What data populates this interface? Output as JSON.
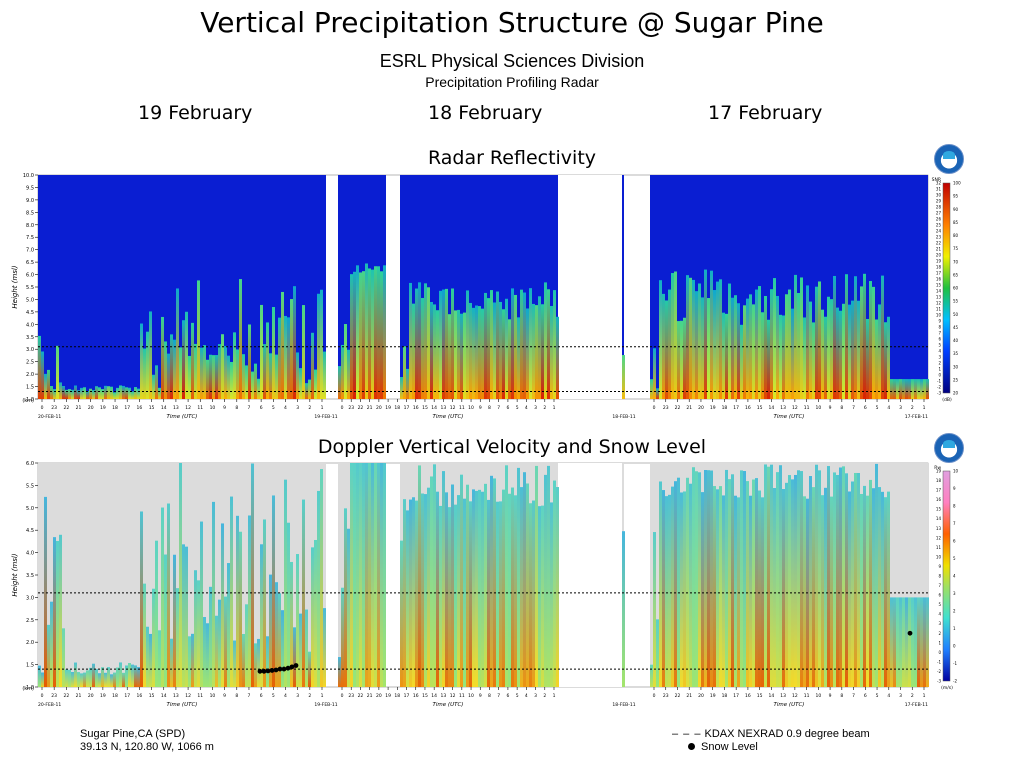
{
  "header": {
    "title": "Vertical Precipitation Structure @ Sugar Pine",
    "org": "ESRL Physical Sciences Division",
    "instrument": "Precipitation Profiling Radar"
  },
  "days": [
    "19 February",
    "18 February",
    "17 February"
  ],
  "footer": {
    "site": "Sugar Pine,CA (SPD)",
    "coords": "39.13 N, 120.80 W, 1066 m",
    "legend_beam": "KDAX NEXRAD 0.9 degree beam",
    "legend_snow": "Snow Level"
  },
  "chart_data": [
    {
      "type": "heatmap",
      "title": "Radar Reflectivity",
      "xlabel": "Time (UTC)",
      "ylabel": "Height (msl)",
      "y_unit": "(km)",
      "ylim": [
        1.0,
        10.0
      ],
      "yticks": [
        "1.0",
        "1.5",
        "2.0",
        "2.5",
        "3.0",
        "3.5",
        "4.0",
        "4.5",
        "5.0",
        "5.5",
        "6.0",
        "6.5",
        "7.0",
        "7.5",
        "8.0",
        "8.5",
        "9.0",
        "9.5",
        "10.0"
      ],
      "x_end_labels": [
        "20-FEB-11",
        "19-FEB-11",
        "18-FEB-11",
        "17-FEB-11"
      ],
      "colorbar": {
        "unit": "(dB)",
        "left_label": "SNR",
        "left_ticks": [
          "-3",
          "-2",
          "-1",
          "0",
          "1",
          "2",
          "3",
          "4",
          "5",
          "6",
          "7",
          "8",
          "9",
          "10",
          "11",
          "12",
          "13",
          "14",
          "15",
          "16",
          "17",
          "18",
          "19",
          "20",
          "21",
          "22",
          "23",
          "24",
          "25",
          "26",
          "27",
          "28",
          "29",
          "30",
          "31",
          "32"
        ],
        "right_ticks": [
          "20",
          "25",
          "30",
          "35",
          "40",
          "45",
          "50",
          "55",
          "60",
          "65",
          "70",
          "75",
          "80",
          "85",
          "90",
          "95",
          "100"
        ]
      },
      "reference_lines_km": [
        3.1,
        1.3
      ],
      "grid": false,
      "legend": "right"
    },
    {
      "type": "heatmap",
      "title": "Doppler Vertical Velocity and Snow Level",
      "xlabel": "Time (UTC)",
      "ylabel": "Height (msl)",
      "y_unit": "(km)",
      "ylim": [
        1.0,
        6.0
      ],
      "yticks": [
        "1.0",
        "1.5",
        "2.0",
        "2.5",
        "3.0",
        "3.5",
        "4.0",
        "4.5",
        "5.0",
        "5.5",
        "6.0"
      ],
      "x_end_labels": [
        "20-FEB-11",
        "19-FEB-11",
        "18-FEB-11",
        "17-FEB-11"
      ],
      "colorbar": {
        "unit": "(m/s)",
        "left_label": "Rw",
        "left_ticks": [
          "-3",
          "-2",
          "-1",
          "0",
          "1",
          "2",
          "3",
          "4",
          "5",
          "6",
          "7",
          "8",
          "9",
          "10",
          "11",
          "12",
          "13",
          "14",
          "15",
          "16",
          "17",
          "18",
          "19"
        ],
        "right_ticks": [
          "-2",
          "-1",
          "0",
          "1",
          "2",
          "3",
          "4",
          "5",
          "6",
          "7",
          "8",
          "9",
          "10"
        ]
      },
      "reference_lines_km": [
        3.1,
        1.4
      ],
      "snow_level_km": [
        1.35,
        1.35,
        1.36,
        1.37,
        1.38,
        1.4,
        1.4,
        1.42,
        1.45,
        1.48,
        2.2
      ],
      "grid": false,
      "legend": "right"
    }
  ]
}
